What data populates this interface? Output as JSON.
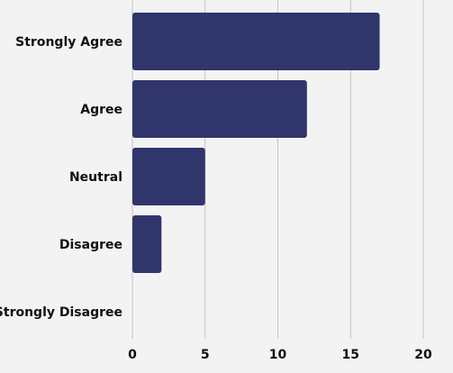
{
  "chart_data": {
    "type": "bar",
    "orientation": "horizontal",
    "categories": [
      "Strongly Agree",
      "Agree",
      "Neutral",
      "Disagree",
      "Strongly Disagree"
    ],
    "values": [
      17,
      12,
      5,
      2,
      0
    ],
    "xlim": [
      0,
      20
    ],
    "x_ticks": [
      "0",
      "5",
      "10",
      "15",
      "20"
    ],
    "title": "",
    "xlabel": "",
    "ylabel": "",
    "grid": "vertical",
    "legend": "none"
  },
  "colors": {
    "bar": "#30356b",
    "grid": "#c4c4c4",
    "background": "#f3f3f3"
  }
}
